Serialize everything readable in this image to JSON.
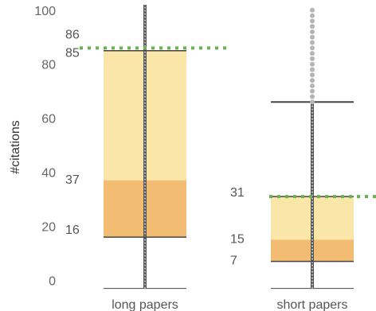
{
  "chart_data": {
    "type": "box",
    "title": "",
    "xlabel": "",
    "ylabel": "#citations",
    "ylim": [
      -4,
      102
    ],
    "yticks": [
      0,
      20,
      40,
      60,
      80,
      100
    ],
    "grid": false,
    "legend": "none",
    "categories": [
      "long papers",
      "short papers"
    ],
    "boxes": [
      {
        "category": "long papers",
        "lower_whisker": 16,
        "q1": 16,
        "median": 37,
        "q3": 85,
        "upper_whisker": 103,
        "reference_line": 86,
        "labels": {
          "lower": "16",
          "median": "37",
          "upper": "85",
          "reference": "86"
        },
        "outliers": []
      },
      {
        "category": "short papers",
        "lower_whisker": 7,
        "q1": 7,
        "median": 15,
        "q3": 31,
        "upper_whisker": 66,
        "reference_line": 31,
        "labels": {
          "lower": "7",
          "median": "15",
          "upper": "31"
        },
        "outliers": [
          66,
          68,
          70,
          72,
          74,
          76,
          78,
          80,
          82,
          84,
          86,
          88,
          90,
          92,
          94,
          96,
          98,
          100
        ]
      }
    ],
    "colors": {
      "upper_box": "#fae6a9",
      "lower_box": "#f2bd72",
      "whisker": "#555555",
      "reference": "#6ab150",
      "outlier": "#b5b5b5"
    }
  }
}
